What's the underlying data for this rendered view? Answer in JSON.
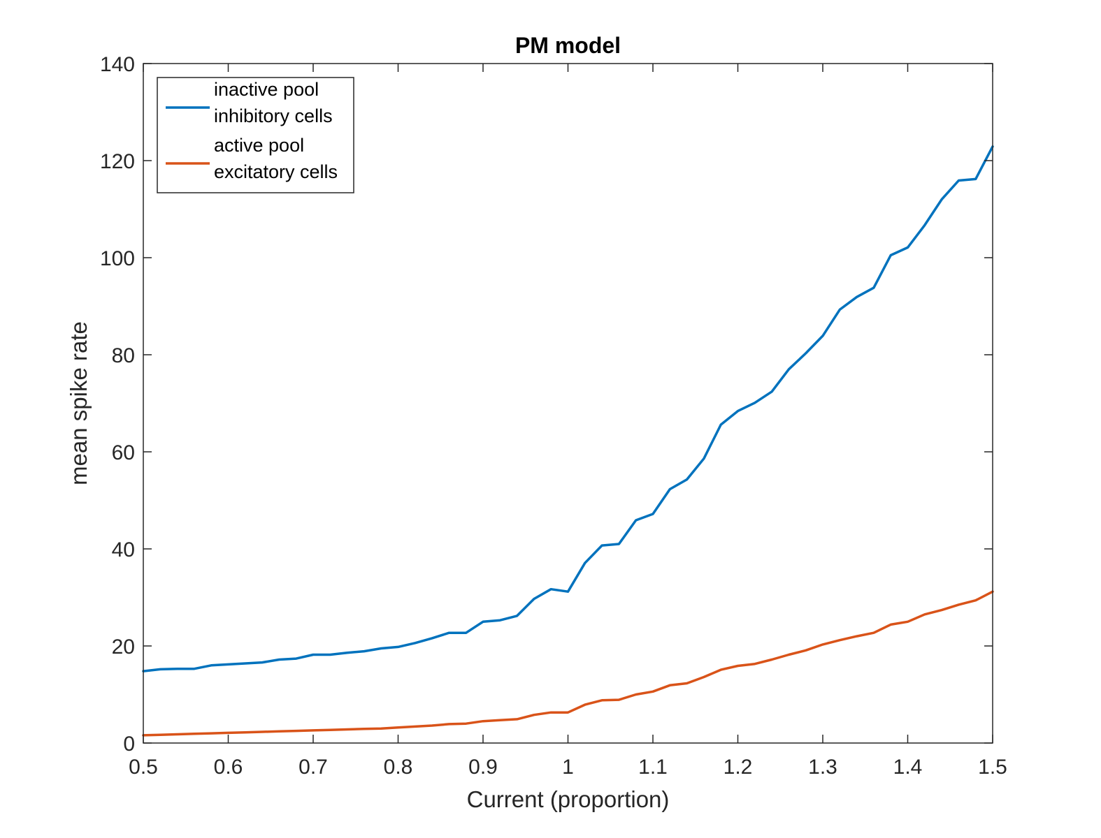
{
  "chart_data": {
    "type": "line",
    "title": "PM model",
    "xlabel": "Current (proportion)",
    "ylabel": "mean spike rate",
    "xlim": [
      0.5,
      1.5
    ],
    "ylim": [
      0,
      140
    ],
    "xticks": [
      0.5,
      0.6,
      0.7,
      0.8,
      0.9,
      1,
      1.1,
      1.2,
      1.3,
      1.4,
      1.5
    ],
    "xtick_labels": [
      "0.5",
      "0.6",
      "0.7",
      "0.8",
      "0.9",
      "1",
      "1.1",
      "1.2",
      "1.3",
      "1.4",
      "1.5"
    ],
    "yticks": [
      0,
      20,
      40,
      60,
      80,
      100,
      120,
      140
    ],
    "ytick_labels": [
      "0",
      "20",
      "40",
      "60",
      "80",
      "100",
      "120",
      "140"
    ],
    "grid": false,
    "legend_position": "top-left",
    "x": [
      0.5,
      0.52,
      0.54,
      0.56,
      0.58,
      0.6,
      0.62,
      0.64,
      0.66,
      0.68,
      0.7,
      0.72,
      0.74,
      0.76,
      0.78,
      0.8,
      0.82,
      0.84,
      0.86,
      0.88,
      0.9,
      0.92,
      0.94,
      0.96,
      0.98,
      1.0,
      1.02,
      1.04,
      1.06,
      1.08,
      1.1,
      1.12,
      1.14,
      1.16,
      1.18,
      1.2,
      1.22,
      1.24,
      1.26,
      1.28,
      1.3,
      1.32,
      1.34,
      1.36,
      1.38,
      1.4,
      1.42,
      1.44,
      1.46,
      1.48,
      1.5
    ],
    "series": [
      {
        "name": "inactive pool\ninhibitory cells",
        "name_lines": [
          "inactive pool",
          "inhibitory cells"
        ],
        "color": "#0072BD",
        "values": [
          14.8,
          15.2,
          15.3,
          15.3,
          16.0,
          16.2,
          16.4,
          16.6,
          17.2,
          17.4,
          18.2,
          18.2,
          18.6,
          18.9,
          19.5,
          19.8,
          20.6,
          21.6,
          22.7,
          22.7,
          25.0,
          25.3,
          26.2,
          29.7,
          31.7,
          31.2,
          37.1,
          40.7,
          41.0,
          45.9,
          47.2,
          52.3,
          54.3,
          58.6,
          65.6,
          68.4,
          70.1,
          72.4,
          77.0,
          80.3,
          83.9,
          89.3,
          91.9,
          93.8,
          100.5,
          102.1,
          106.7,
          112.0,
          115.9,
          116.2,
          122.9
        ]
      },
      {
        "name": "active pool\nexcitatory cells",
        "name_lines": [
          "active pool",
          "excitatory cells"
        ],
        "color": "#D95319",
        "values": [
          1.6,
          1.7,
          1.8,
          1.9,
          2.0,
          2.1,
          2.2,
          2.3,
          2.4,
          2.5,
          2.6,
          2.7,
          2.8,
          2.9,
          3.0,
          3.2,
          3.4,
          3.6,
          3.9,
          4.0,
          4.5,
          4.7,
          4.9,
          5.8,
          6.3,
          6.3,
          7.9,
          8.8,
          8.9,
          10.0,
          10.6,
          11.9,
          12.3,
          13.6,
          15.1,
          15.9,
          16.3,
          17.2,
          18.2,
          19.1,
          20.3,
          21.2,
          22.0,
          22.7,
          24.4,
          25.0,
          26.5,
          27.4,
          28.5,
          29.4,
          31.2
        ]
      }
    ]
  }
}
